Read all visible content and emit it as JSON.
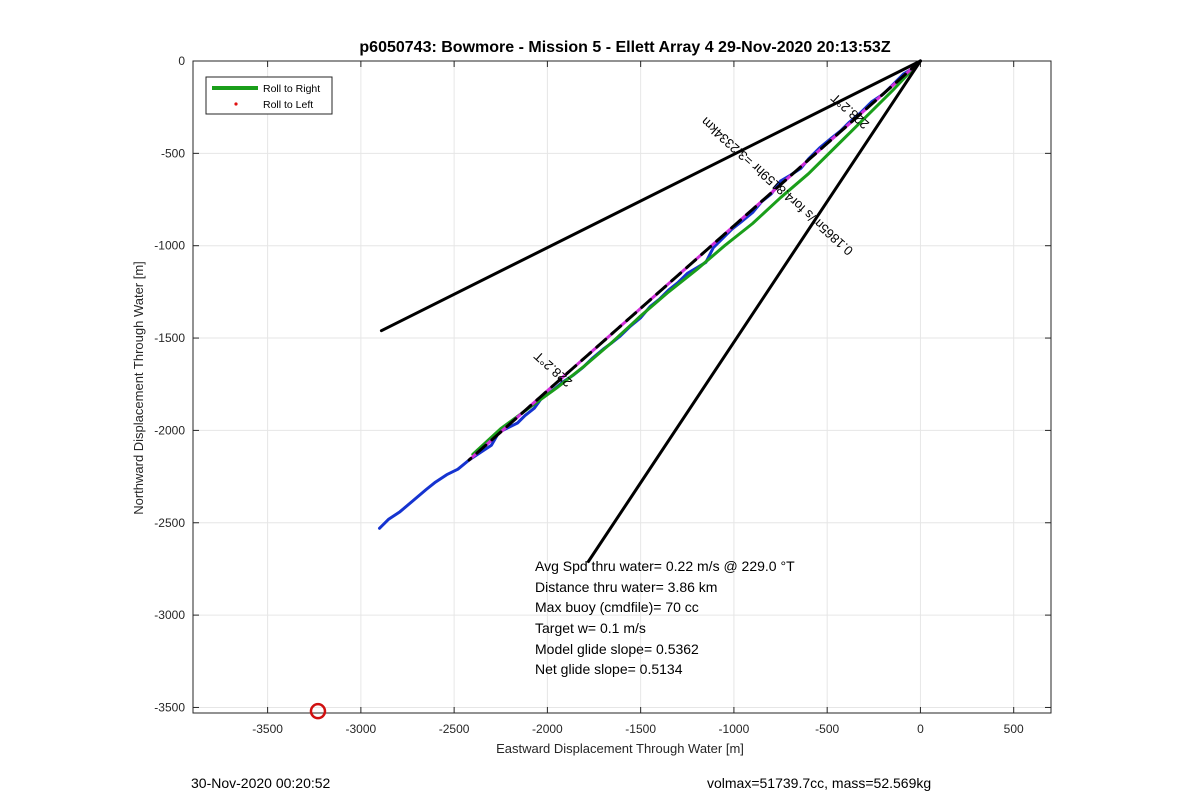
{
  "chart_data": {
    "type": "line",
    "title": "p6050743: Bowmore - Mission 5 - Ellett Array 4 29-Nov-2020 20:13:53Z",
    "xlabel": "Eastward Displacement Through Water [m]",
    "ylabel": "Northward Displacement Through Water [m]",
    "xlim": [
      -3900,
      700
    ],
    "ylim": [
      -3530,
      0
    ],
    "xticks": [
      -3500,
      -3000,
      -2500,
      -2000,
      -1500,
      -1000,
      -500,
      0,
      500
    ],
    "yticks": [
      0,
      -500,
      -1000,
      -1500,
      -2000,
      -2500,
      -3000,
      -3500
    ],
    "grid": true,
    "legend": {
      "placement": "top-left",
      "entries": [
        {
          "label": "Roll to Right",
          "color": "#1a9e1a",
          "style": "line"
        },
        {
          "label": "Roll to Left",
          "color": "#e01010",
          "style": "dot"
        }
      ]
    },
    "series": [
      {
        "color": "#1533d0",
        "x": [
          0,
          -40,
          -90,
          -150,
          -200,
          -260,
          -320,
          -380,
          -430,
          -480,
          -540,
          -600,
          -640,
          -700,
          -750,
          -800,
          -850,
          -900,
          -960,
          -1010,
          -1060,
          -1110,
          -1150,
          -1200,
          -1250,
          -1300,
          -1350,
          -1400,
          -1450,
          -1500,
          -1560,
          -1610,
          -1660,
          -1700,
          -1760,
          -1810,
          -1860,
          -1920,
          -1980,
          -2020,
          -2070,
          -2120,
          -2160,
          -2200,
          -2260,
          -2300,
          -2360,
          -2420,
          -2480,
          -2540,
          -2600,
          -2650,
          -2720,
          -2790,
          -2850,
          -2900
        ],
        "y": [
          0,
          -40,
          -70,
          -130,
          -180,
          -220,
          -280,
          -330,
          -380,
          -420,
          -470,
          -530,
          -580,
          -620,
          -650,
          -720,
          -760,
          -820,
          -870,
          -910,
          -960,
          -1010,
          -1090,
          -1120,
          -1150,
          -1200,
          -1240,
          -1290,
          -1330,
          -1390,
          -1440,
          -1490,
          -1530,
          -1560,
          -1610,
          -1660,
          -1700,
          -1740,
          -1790,
          -1810,
          -1880,
          -1920,
          -1960,
          -1980,
          -2010,
          -2080,
          -2120,
          -2160,
          -2210,
          -2240,
          -2280,
          -2320,
          -2380,
          -2440,
          -2480,
          -2530
        ]
      },
      {
        "color": "#1a9e1a",
        "x": [
          0,
          -150,
          -300,
          -450,
          -600,
          -750,
          -900,
          -1050,
          -1200,
          -1350,
          -1500,
          -1650,
          -1800,
          -1950,
          -2100,
          -2250,
          -2400
        ],
        "y": [
          0,
          -160,
          -310,
          -460,
          -610,
          -740,
          -880,
          -1000,
          -1130,
          -1250,
          -1380,
          -1520,
          -1650,
          -1770,
          -1880,
          -1990,
          -2130
        ]
      },
      {
        "color": "#cf2ed8",
        "style": "dashed",
        "x": [
          0,
          -2420
        ],
        "y": [
          0,
          -2160
        ]
      },
      {
        "color": "#000000",
        "style": "dashed",
        "x": [
          0,
          -2420
        ],
        "y": [
          0,
          -2160
        ]
      },
      {
        "color": "#000000",
        "x": [
          0,
          -2890
        ],
        "y": [
          0,
          -1460
        ]
      },
      {
        "color": "#000000",
        "x": [
          0,
          -1780
        ],
        "y": [
          0,
          -2710
        ]
      }
    ],
    "markers": [
      {
        "type": "circle",
        "color": "#d01010",
        "x": -3230,
        "y": -3520
      }
    ],
    "annotations": {
      "heading_upper": "228.2°T",
      "heading_lower": "228.2°T",
      "current_text": "0.1865m/s for4.8159hr =3.2334km",
      "stats": [
        "Avg Spd thru water=  0.22 m/s @ 229.0 °T",
        "Distance thru water=  3.86 km",
        "Max buoy (cmdfile)= 70 cc",
        "Target w= 0.1 m/s",
        "Model glide slope= 0.5362",
        "Net glide slope= 0.5134"
      ]
    }
  },
  "footer": {
    "left": "30-Nov-2020 00:20:52",
    "right": "volmax=51739.7cc, mass=52.569kg"
  }
}
